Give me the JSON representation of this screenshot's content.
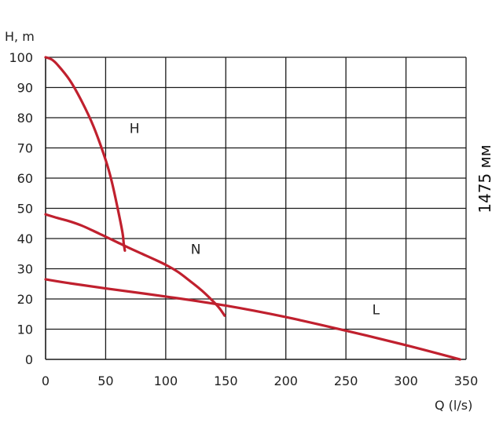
{
  "chart_data": {
    "type": "line",
    "ylabel": "H, m",
    "xlabel": "Q (l/s)",
    "side_label": "1475 мм",
    "xlim": [
      0,
      350
    ],
    "ylim": [
      0,
      100
    ],
    "x_ticks": [
      0,
      50,
      100,
      150,
      200,
      250,
      300,
      350
    ],
    "y_ticks": [
      0,
      10,
      20,
      30,
      40,
      50,
      60,
      70,
      80,
      90,
      100
    ],
    "grid": true,
    "curve_color": "#c0202e",
    "series": [
      {
        "name": "H",
        "label_at": [
          74,
          75
        ],
        "points": [
          [
            0,
            100
          ],
          [
            5,
            99.3
          ],
          [
            10,
            97.5
          ],
          [
            20,
            92.5
          ],
          [
            30,
            85.5
          ],
          [
            40,
            77
          ],
          [
            50,
            66
          ],
          [
            55,
            59
          ],
          [
            60,
            50
          ],
          [
            64,
            42
          ],
          [
            65,
            38.5
          ],
          [
            66,
            36
          ]
        ]
      },
      {
        "name": "N",
        "label_at": [
          125,
          35
        ],
        "points": [
          [
            0,
            48
          ],
          [
            10,
            46.8
          ],
          [
            20,
            45.7
          ],
          [
            30,
            44.3
          ],
          [
            40,
            42.5
          ],
          [
            50,
            40.6
          ],
          [
            60,
            38.7
          ],
          [
            70,
            36.8
          ],
          [
            80,
            35
          ],
          [
            90,
            33.2
          ],
          [
            100,
            31.3
          ],
          [
            110,
            29
          ],
          [
            120,
            26
          ],
          [
            130,
            22.8
          ],
          [
            140,
            19
          ],
          [
            145,
            16.8
          ],
          [
            149,
            14.5
          ]
        ]
      },
      {
        "name": "L",
        "label_at": [
          275,
          15
        ],
        "points": [
          [
            0,
            26.5
          ],
          [
            20,
            25.2
          ],
          [
            50,
            23.5
          ],
          [
            100,
            20.8
          ],
          [
            150,
            17.8
          ],
          [
            200,
            14
          ],
          [
            250,
            9.5
          ],
          [
            300,
            4.7
          ],
          [
            345,
            0
          ]
        ]
      }
    ]
  }
}
